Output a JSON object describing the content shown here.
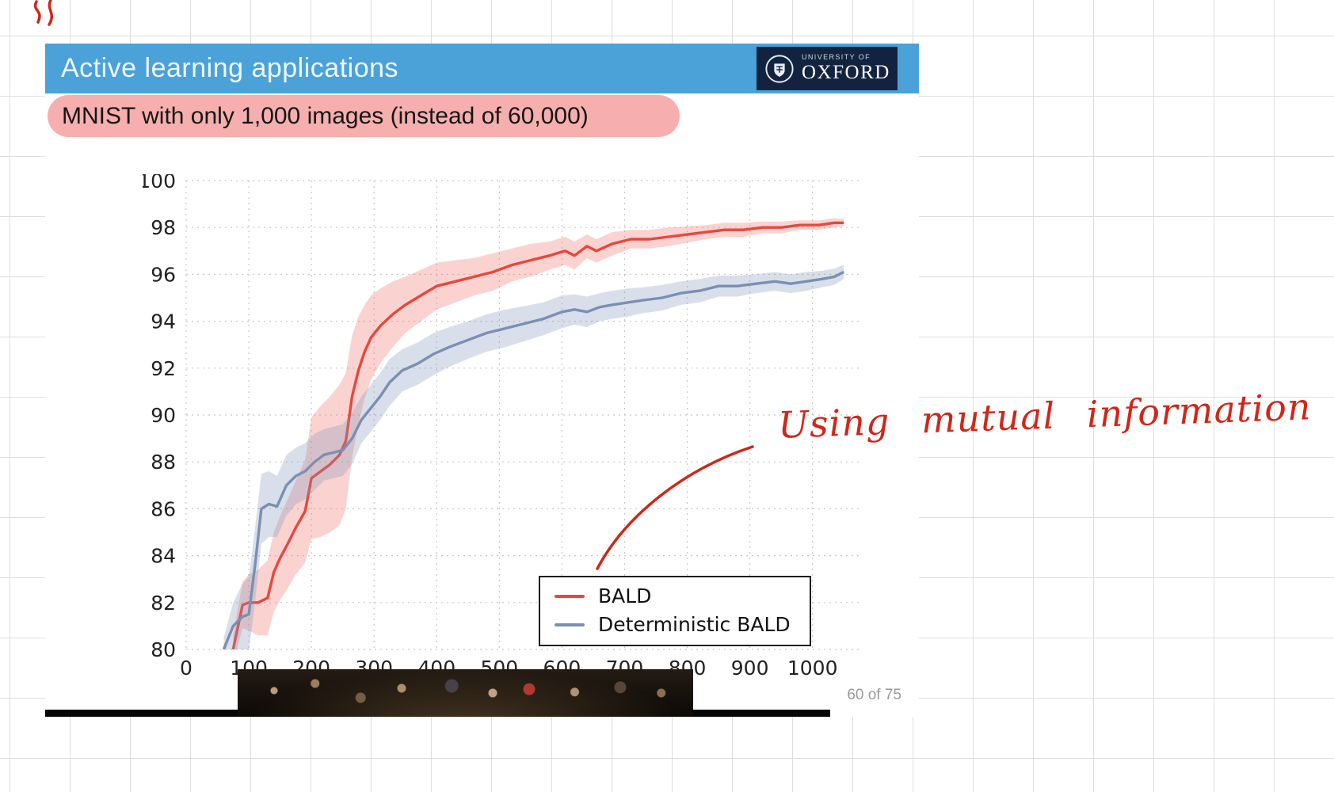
{
  "colors": {
    "header_blue": "#4aa2d9",
    "logo_navy": "#13233f",
    "highlight_pink": "rgba(238,110,108,0.55)",
    "ink_red": "#d12619",
    "page_num_gray": "#9a9a9a"
  },
  "page": {
    "annotation_text": "Using mutual information",
    "page_indicator": "60 of 75"
  },
  "slide": {
    "title": "Active learning applications",
    "logo": {
      "top": "UNIVERSITY OF",
      "name": "OXFORD"
    },
    "subtitle": "MNIST with only 1,000 images (instead of 60,000)"
  },
  "chart_data": {
    "type": "line",
    "title": "",
    "xlabel": "",
    "ylabel": "",
    "xlim": [
      0,
      1075
    ],
    "ylim": [
      80,
      100
    ],
    "xticks": [
      0,
      100,
      200,
      300,
      400,
      500,
      600,
      700,
      800,
      900,
      1000
    ],
    "yticks": [
      80,
      82,
      84,
      86,
      88,
      90,
      92,
      94,
      96,
      98,
      100
    ],
    "grid": true,
    "grid_style": "dotted",
    "legend_position": "lower-right-in-plot",
    "series": [
      {
        "name": "BALD",
        "color": "#e8473c",
        "band_color": "rgba(238,110,100,0.30)",
        "x": [
          75,
          90,
          100,
          115,
          130,
          140,
          150,
          162,
          175,
          190,
          200,
          215,
          230,
          245,
          255,
          265,
          275,
          285,
          295,
          310,
          330,
          350,
          375,
          400,
          430,
          460,
          490,
          520,
          550,
          580,
          605,
          620,
          640,
          655,
          680,
          710,
          740,
          770,
          800,
          830,
          860,
          890,
          920,
          950,
          980,
          1010,
          1035,
          1050
        ],
        "y": [
          80.0,
          81.9,
          82.0,
          82.0,
          82.2,
          83.3,
          83.9,
          84.5,
          85.2,
          85.9,
          87.3,
          87.6,
          87.9,
          88.3,
          88.9,
          90.8,
          91.9,
          92.7,
          93.3,
          93.8,
          94.3,
          94.7,
          95.1,
          95.5,
          95.7,
          95.9,
          96.1,
          96.4,
          96.6,
          96.8,
          97.0,
          96.8,
          97.2,
          97.0,
          97.3,
          97.5,
          97.5,
          97.6,
          97.7,
          97.8,
          97.9,
          97.9,
          98.0,
          98.0,
          98.1,
          98.1,
          98.2,
          98.2
        ],
        "band": [
          0.6,
          1.0,
          1.2,
          1.4,
          1.6,
          1.7,
          1.8,
          1.9,
          2.0,
          2.2,
          2.6,
          2.8,
          2.9,
          3.0,
          2.9,
          2.6,
          2.3,
          2.0,
          1.8,
          1.6,
          1.4,
          1.2,
          1.1,
          1.0,
          0.9,
          0.8,
          0.8,
          0.7,
          0.7,
          0.6,
          0.6,
          0.6,
          0.5,
          0.5,
          0.5,
          0.4,
          0.4,
          0.4,
          0.35,
          0.3,
          0.3,
          0.3,
          0.25,
          0.25,
          0.2,
          0.2,
          0.2,
          0.15
        ]
      },
      {
        "name": "Deterministic BALD",
        "color": "#7b8fb3",
        "band_color": "rgba(130,150,185,0.30)",
        "x": [
          60,
          75,
          90,
          100,
          110,
          120,
          132,
          145,
          160,
          175,
          190,
          205,
          220,
          235,
          250,
          265,
          280,
          295,
          310,
          325,
          345,
          370,
          395,
          420,
          450,
          480,
          510,
          540,
          570,
          600,
          620,
          640,
          660,
          680,
          705,
          730,
          760,
          790,
          820,
          850,
          880,
          910,
          940,
          965,
          990,
          1015,
          1035,
          1050
        ],
        "y": [
          80.0,
          81.0,
          81.4,
          81.5,
          83.6,
          86.0,
          86.2,
          86.1,
          87.0,
          87.4,
          87.6,
          88.0,
          88.3,
          88.4,
          88.5,
          89.0,
          89.8,
          90.3,
          90.8,
          91.4,
          91.9,
          92.2,
          92.6,
          92.9,
          93.2,
          93.5,
          93.7,
          93.9,
          94.1,
          94.4,
          94.5,
          94.4,
          94.6,
          94.7,
          94.8,
          94.9,
          95.0,
          95.2,
          95.3,
          95.5,
          95.5,
          95.6,
          95.7,
          95.6,
          95.7,
          95.8,
          95.9,
          96.1
        ],
        "band": [
          0.5,
          1.0,
          1.4,
          1.6,
          1.6,
          1.5,
          1.4,
          1.3,
          1.3,
          1.2,
          1.2,
          1.2,
          1.1,
          1.1,
          1.1,
          1.1,
          1.0,
          1.0,
          1.0,
          1.0,
          0.9,
          0.9,
          0.9,
          0.85,
          0.8,
          0.8,
          0.8,
          0.75,
          0.7,
          0.7,
          0.65,
          0.65,
          0.6,
          0.6,
          0.6,
          0.55,
          0.55,
          0.5,
          0.5,
          0.45,
          0.45,
          0.4,
          0.4,
          0.4,
          0.4,
          0.35,
          0.35,
          0.3
        ]
      }
    ]
  }
}
